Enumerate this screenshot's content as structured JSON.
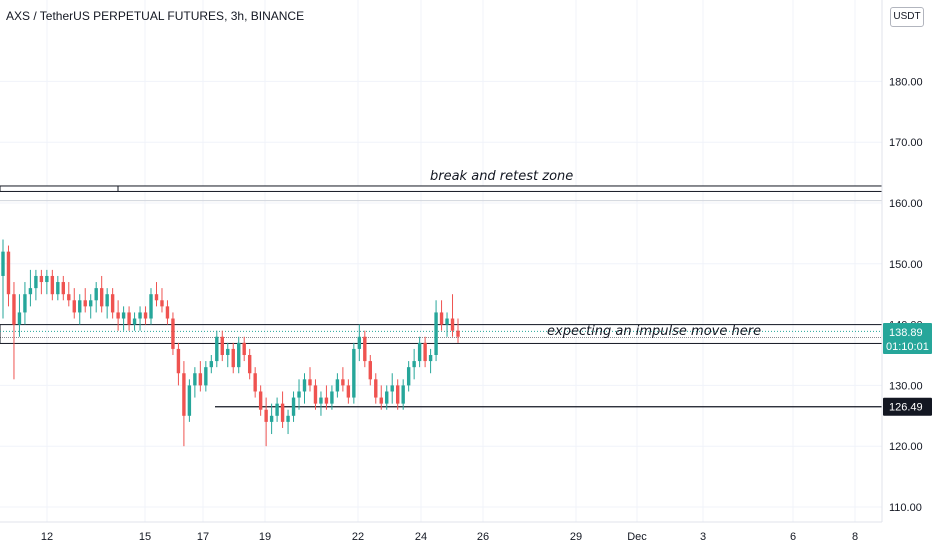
{
  "header": {
    "title": "AXS / TetherUS PERPETUAL FUTURES, 3h, BINANCE",
    "currency_button": "USDT"
  },
  "chart_data": {
    "type": "candlestick",
    "symbol": "AXS / TetherUS PERPETUAL FUTURES",
    "interval": "3h",
    "exchange": "BINANCE",
    "ylim": [
      107,
      193
    ],
    "y_ticks": [
      110,
      120,
      130,
      140,
      150,
      160,
      170,
      180
    ],
    "y_tick_labels": [
      "110.00",
      "120.00",
      "130.00",
      "140.00",
      "150.00",
      "160.00",
      "170.00",
      "180.00"
    ],
    "x_ticks": [
      "12",
      "15",
      "17",
      "19",
      "22",
      "24",
      "26",
      "29",
      "Dec",
      "3",
      "6",
      "8"
    ],
    "grid": true,
    "colors": {
      "up": "#26a69a",
      "down": "#ef5350",
      "current": "#26a69a",
      "line": "#131722"
    },
    "current_price": "138.89",
    "countdown": "01:10:01",
    "marked_level": "126.49",
    "annotations": {
      "upper_zone": "break and retest zone",
      "lower_zone": "expecting an impulse move here"
    },
    "zones": [
      {
        "name": "break and retest zone",
        "low": 161.9,
        "high": 162.8
      },
      {
        "name": "expecting an impulse move here",
        "low": 136.9,
        "high": 140.0
      }
    ],
    "candles": [
      {
        "o": 148,
        "h": 154,
        "l": 141,
        "c": 152
      },
      {
        "o": 152,
        "h": 153,
        "l": 143,
        "c": 145
      },
      {
        "o": 145,
        "h": 147,
        "l": 131,
        "c": 140
      },
      {
        "o": 140,
        "h": 145,
        "l": 138,
        "c": 142
      },
      {
        "o": 142,
        "h": 147,
        "l": 140,
        "c": 145
      },
      {
        "o": 145,
        "h": 149,
        "l": 143,
        "c": 146
      },
      {
        "o": 146,
        "h": 149,
        "l": 144,
        "c": 148
      },
      {
        "o": 148,
        "h": 149,
        "l": 145,
        "c": 147
      },
      {
        "o": 147,
        "h": 149,
        "l": 145,
        "c": 148
      },
      {
        "o": 148,
        "h": 149,
        "l": 144,
        "c": 145
      },
      {
        "o": 145,
        "h": 148,
        "l": 144,
        "c": 147
      },
      {
        "o": 147,
        "h": 148,
        "l": 144,
        "c": 145
      },
      {
        "o": 145,
        "h": 147,
        "l": 143,
        "c": 144
      },
      {
        "o": 144,
        "h": 146,
        "l": 141,
        "c": 142
      },
      {
        "o": 142,
        "h": 145,
        "l": 140,
        "c": 144
      },
      {
        "o": 144,
        "h": 146,
        "l": 142,
        "c": 143
      },
      {
        "o": 143,
        "h": 145,
        "l": 141,
        "c": 144
      },
      {
        "o": 144,
        "h": 147,
        "l": 142,
        "c": 146
      },
      {
        "o": 146,
        "h": 148,
        "l": 142,
        "c": 143
      },
      {
        "o": 143,
        "h": 146,
        "l": 141,
        "c": 145
      },
      {
        "o": 145,
        "h": 146,
        "l": 141,
        "c": 142
      },
      {
        "o": 142,
        "h": 144,
        "l": 139,
        "c": 141
      },
      {
        "o": 141,
        "h": 143,
        "l": 139,
        "c": 142
      },
      {
        "o": 142,
        "h": 143,
        "l": 139,
        "c": 140
      },
      {
        "o": 140,
        "h": 142,
        "l": 139,
        "c": 141
      },
      {
        "o": 141,
        "h": 143,
        "l": 139,
        "c": 142
      },
      {
        "o": 142,
        "h": 143,
        "l": 140,
        "c": 141
      },
      {
        "o": 141,
        "h": 146,
        "l": 140,
        "c": 145
      },
      {
        "o": 145,
        "h": 147,
        "l": 143,
        "c": 144
      },
      {
        "o": 144,
        "h": 146,
        "l": 142,
        "c": 143
      },
      {
        "o": 143,
        "h": 144,
        "l": 140,
        "c": 141
      },
      {
        "o": 141,
        "h": 142,
        "l": 135,
        "c": 136
      },
      {
        "o": 136,
        "h": 137,
        "l": 130,
        "c": 132
      },
      {
        "o": 132,
        "h": 134,
        "l": 120,
        "c": 125
      },
      {
        "o": 125,
        "h": 131,
        "l": 124,
        "c": 130
      },
      {
        "o": 130,
        "h": 133,
        "l": 128,
        "c": 132
      },
      {
        "o": 132,
        "h": 134,
        "l": 129,
        "c": 130
      },
      {
        "o": 130,
        "h": 134,
        "l": 129,
        "c": 133
      },
      {
        "o": 133,
        "h": 135,
        "l": 132,
        "c": 134
      },
      {
        "o": 134,
        "h": 139,
        "l": 133,
        "c": 138
      },
      {
        "o": 138,
        "h": 139,
        "l": 134,
        "c": 135
      },
      {
        "o": 135,
        "h": 137,
        "l": 133,
        "c": 136
      },
      {
        "o": 136,
        "h": 137,
        "l": 132,
        "c": 133
      },
      {
        "o": 133,
        "h": 138,
        "l": 132,
        "c": 137
      },
      {
        "o": 137,
        "h": 138,
        "l": 134,
        "c": 135
      },
      {
        "o": 135,
        "h": 136,
        "l": 131,
        "c": 132
      },
      {
        "o": 132,
        "h": 133,
        "l": 128,
        "c": 129
      },
      {
        "o": 129,
        "h": 130,
        "l": 125,
        "c": 126
      },
      {
        "o": 126,
        "h": 128,
        "l": 120,
        "c": 124
      },
      {
        "o": 124,
        "h": 127,
        "l": 122,
        "c": 125
      },
      {
        "o": 125,
        "h": 128,
        "l": 124,
        "c": 127
      },
      {
        "o": 127,
        "h": 129,
        "l": 123,
        "c": 124
      },
      {
        "o": 124,
        "h": 126,
        "l": 122,
        "c": 125
      },
      {
        "o": 125,
        "h": 129,
        "l": 124,
        "c": 128
      },
      {
        "o": 128,
        "h": 131,
        "l": 126,
        "c": 129
      },
      {
        "o": 129,
        "h": 132,
        "l": 127,
        "c": 131
      },
      {
        "o": 131,
        "h": 133,
        "l": 129,
        "c": 130
      },
      {
        "o": 130,
        "h": 131,
        "l": 126,
        "c": 127
      },
      {
        "o": 127,
        "h": 129,
        "l": 125,
        "c": 128
      },
      {
        "o": 128,
        "h": 130,
        "l": 126,
        "c": 127
      },
      {
        "o": 127,
        "h": 130,
        "l": 126,
        "c": 129
      },
      {
        "o": 129,
        "h": 132,
        "l": 128,
        "c": 131
      },
      {
        "o": 131,
        "h": 133,
        "l": 129,
        "c": 130
      },
      {
        "o": 130,
        "h": 131,
        "l": 127,
        "c": 128
      },
      {
        "o": 128,
        "h": 137,
        "l": 127,
        "c": 136
      },
      {
        "o": 136,
        "h": 140,
        "l": 134,
        "c": 138
      },
      {
        "o": 138,
        "h": 139,
        "l": 133,
        "c": 134
      },
      {
        "o": 134,
        "h": 135,
        "l": 130,
        "c": 131
      },
      {
        "o": 131,
        "h": 132,
        "l": 127,
        "c": 128
      },
      {
        "o": 128,
        "h": 130,
        "l": 126,
        "c": 127
      },
      {
        "o": 127,
        "h": 130,
        "l": 126,
        "c": 129
      },
      {
        "o": 129,
        "h": 132,
        "l": 127,
        "c": 130
      },
      {
        "o": 130,
        "h": 131,
        "l": 126,
        "c": 127
      },
      {
        "o": 127,
        "h": 131,
        "l": 126,
        "c": 130
      },
      {
        "o": 130,
        "h": 134,
        "l": 129,
        "c": 133
      },
      {
        "o": 133,
        "h": 136,
        "l": 131,
        "c": 134
      },
      {
        "o": 134,
        "h": 138,
        "l": 133,
        "c": 137
      },
      {
        "o": 137,
        "h": 138,
        "l": 133,
        "c": 134
      },
      {
        "o": 134,
        "h": 136,
        "l": 132,
        "c": 135
      },
      {
        "o": 135,
        "h": 144,
        "l": 134,
        "c": 142
      },
      {
        "o": 142,
        "h": 144,
        "l": 139,
        "c": 140
      },
      {
        "o": 140,
        "h": 142,
        "l": 138,
        "c": 141
      },
      {
        "o": 141,
        "h": 145,
        "l": 138,
        "c": 139
      },
      {
        "o": 139,
        "h": 141,
        "l": 137,
        "c": 138
      }
    ]
  }
}
